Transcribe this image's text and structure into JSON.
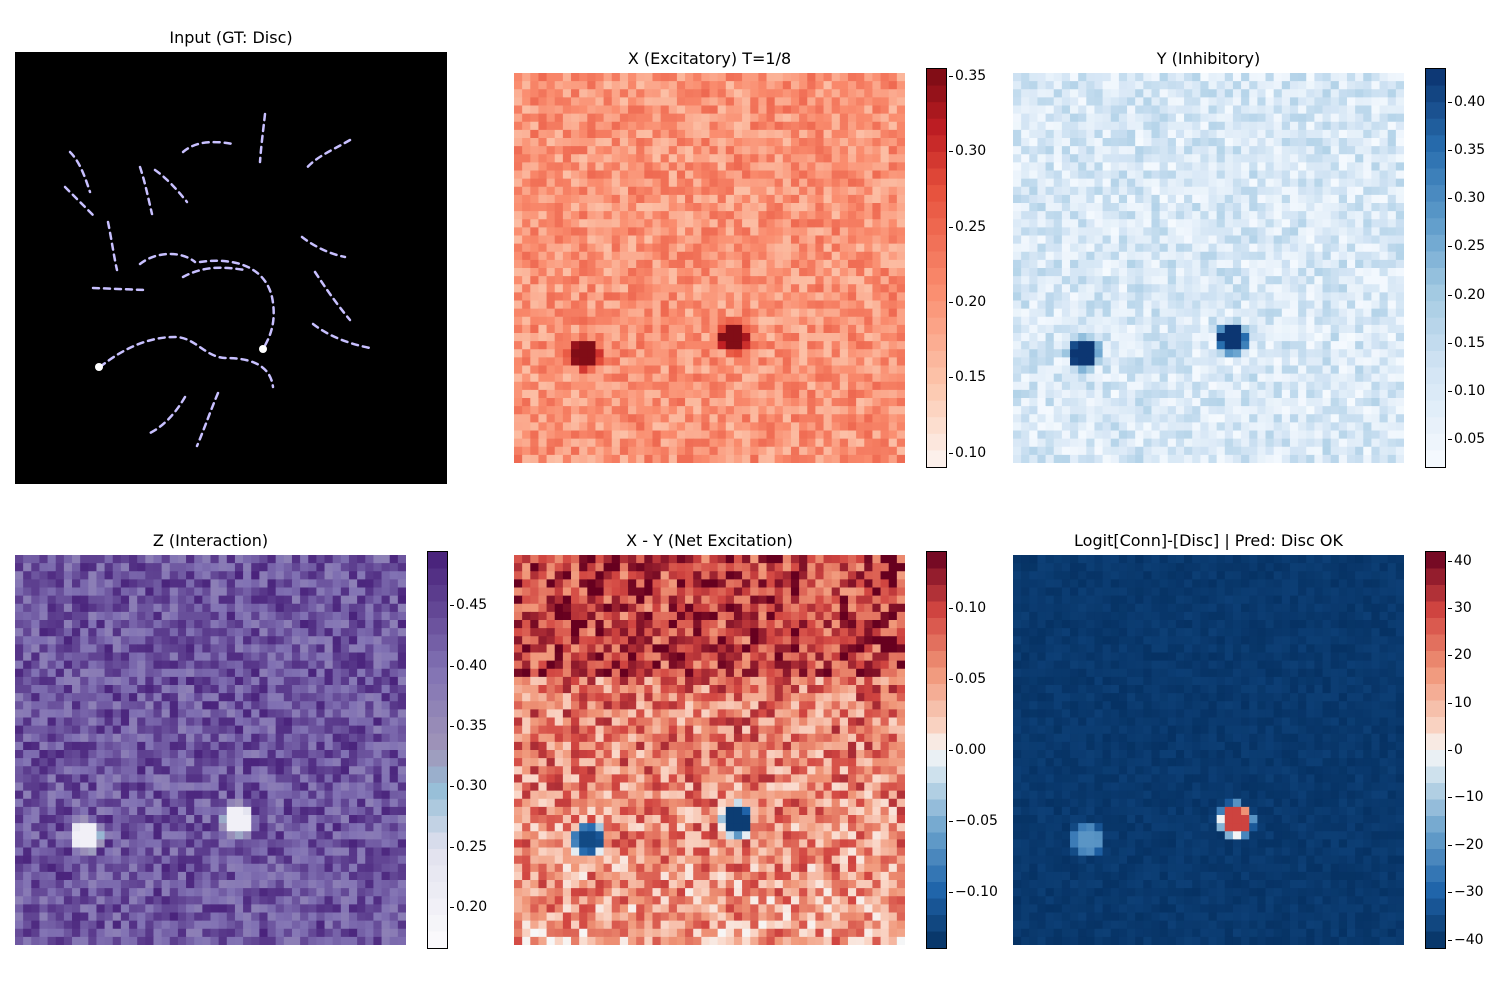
{
  "chart_data": [
    {
      "type": "image",
      "title": "Input (GT: Disc)",
      "colormap": "gray-dark-with-lavender-contours",
      "background_color": "#000000",
      "stroke_color": "#c8c0ff"
    },
    {
      "type": "heatmap",
      "title": "X (Excitatory) T=1/8",
      "colormap": "Reds",
      "colorbar": {
        "ticks": [
          "0.10",
          "0.15",
          "0.20",
          "0.25",
          "0.30",
          "0.35"
        ],
        "vmin": 0.09,
        "vmax": 0.355
      },
      "base_value": 0.2,
      "hotspots": [
        {
          "x": 0.18,
          "y": 0.72,
          "value": 0.35
        },
        {
          "x": 0.56,
          "y": 0.68,
          "value": 0.35
        }
      ]
    },
    {
      "type": "heatmap",
      "title": "Y (Inhibitory)",
      "colormap": "Blues",
      "colorbar": {
        "ticks": [
          "0.05",
          "0.10",
          "0.15",
          "0.20",
          "0.25",
          "0.30",
          "0.35",
          "0.40"
        ],
        "vmin": 0.02,
        "vmax": 0.435
      },
      "base_value": 0.1,
      "hotspots": [
        {
          "x": 0.18,
          "y": 0.72,
          "value": 0.43
        },
        {
          "x": 0.56,
          "y": 0.68,
          "value": 0.43
        }
      ]
    },
    {
      "type": "heatmap",
      "title": "Z (Interaction)",
      "colormap": "Purples-with-blue-band",
      "colorbar": {
        "ticks": [
          "0.20",
          "0.25",
          "0.30",
          "0.35",
          "0.40",
          "0.45"
        ],
        "vmin": 0.165,
        "vmax": 0.495
      },
      "base_value": 0.43,
      "hotspots": [
        {
          "x": 0.18,
          "y": 0.72,
          "value": 0.2
        },
        {
          "x": 0.57,
          "y": 0.68,
          "value": 0.2
        }
      ]
    },
    {
      "type": "heatmap",
      "title": "X - Y (Net Excitation)",
      "colormap": "RdBu_r",
      "colorbar": {
        "ticks": [
          "0.10",
          "0.05",
          "0.00",
          "−0.05",
          "−0.10"
        ],
        "vmin": -0.14,
        "vmax": 0.14
      },
      "base_value": 0.07,
      "hotspots": [
        {
          "x": 0.19,
          "y": 0.73,
          "value": -0.12
        },
        {
          "x": 0.57,
          "y": 0.68,
          "value": -0.13
        }
      ]
    },
    {
      "type": "heatmap",
      "title": "Logit[Conn]-[Disc] | Pred: Disc OK",
      "colormap": "RdBu_r",
      "colorbar": {
        "ticks": [
          "40",
          "30",
          "20",
          "10",
          "0",
          "−10",
          "−20",
          "−30",
          "−40"
        ],
        "vmin": -42,
        "vmax": 42
      },
      "base_value": -40,
      "hotspots": [
        {
          "x": 0.19,
          "y": 0.73,
          "value": -20
        },
        {
          "x": 0.57,
          "y": 0.68,
          "value": 30
        }
      ]
    }
  ]
}
